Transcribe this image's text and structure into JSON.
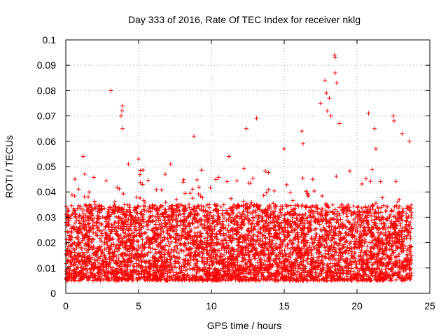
{
  "chart_data": {
    "type": "scatter",
    "title": "Day 333 of 2016, Rate Of TEC Index for receiver nklg",
    "xlabel": "GPS time / hours",
    "ylabel": "ROTI / TECUs",
    "xlim": [
      0,
      25
    ],
    "ylim": [
      0,
      0.1
    ],
    "x_ticks": [
      "0",
      "5",
      "10",
      "15",
      "20",
      "25"
    ],
    "y_ticks": [
      "0",
      "0.01",
      "0.02",
      "0.03",
      "0.04",
      "0.05",
      "0.06",
      "0.07",
      "0.08",
      "0.09",
      "0.1"
    ],
    "grid": true,
    "marker": "+",
    "color": "#ff0000",
    "series": [
      {
        "name": "ROTI",
        "x_range_hours": [
          0,
          23.75
        ],
        "typical_band": [
          0.005,
          0.035
        ],
        "points": [
          {
            "x": 1.2,
            "y": 0.054
          },
          {
            "x": 1.3,
            "y": 0.047
          },
          {
            "x": 1.6,
            "y": 0.04
          },
          {
            "x": 3.1,
            "y": 0.08
          },
          {
            "x": 3.9,
            "y": 0.074
          },
          {
            "x": 3.85,
            "y": 0.072
          },
          {
            "x": 3.8,
            "y": 0.07
          },
          {
            "x": 3.9,
            "y": 0.065
          },
          {
            "x": 4.3,
            "y": 0.051
          },
          {
            "x": 5.0,
            "y": 0.053
          },
          {
            "x": 7.2,
            "y": 0.051
          },
          {
            "x": 8.8,
            "y": 0.062
          },
          {
            "x": 11.2,
            "y": 0.054
          },
          {
            "x": 12.4,
            "y": 0.065
          },
          {
            "x": 13.1,
            "y": 0.069
          },
          {
            "x": 15.0,
            "y": 0.057
          },
          {
            "x": 16.2,
            "y": 0.064
          },
          {
            "x": 16.3,
            "y": 0.059
          },
          {
            "x": 17.5,
            "y": 0.075
          },
          {
            "x": 17.8,
            "y": 0.084
          },
          {
            "x": 17.9,
            "y": 0.079
          },
          {
            "x": 17.95,
            "y": 0.072
          },
          {
            "x": 18.1,
            "y": 0.077
          },
          {
            "x": 18.2,
            "y": 0.07
          },
          {
            "x": 18.45,
            "y": 0.094
          },
          {
            "x": 18.5,
            "y": 0.093
          },
          {
            "x": 18.5,
            "y": 0.087
          },
          {
            "x": 18.6,
            "y": 0.083
          },
          {
            "x": 18.8,
            "y": 0.067
          },
          {
            "x": 20.8,
            "y": 0.071
          },
          {
            "x": 21.2,
            "y": 0.065
          },
          {
            "x": 21.3,
            "y": 0.057
          },
          {
            "x": 22.5,
            "y": 0.07
          },
          {
            "x": 22.55,
            "y": 0.068
          },
          {
            "x": 23.1,
            "y": 0.063
          },
          {
            "x": 23.6,
            "y": 0.06
          }
        ]
      }
    ]
  }
}
